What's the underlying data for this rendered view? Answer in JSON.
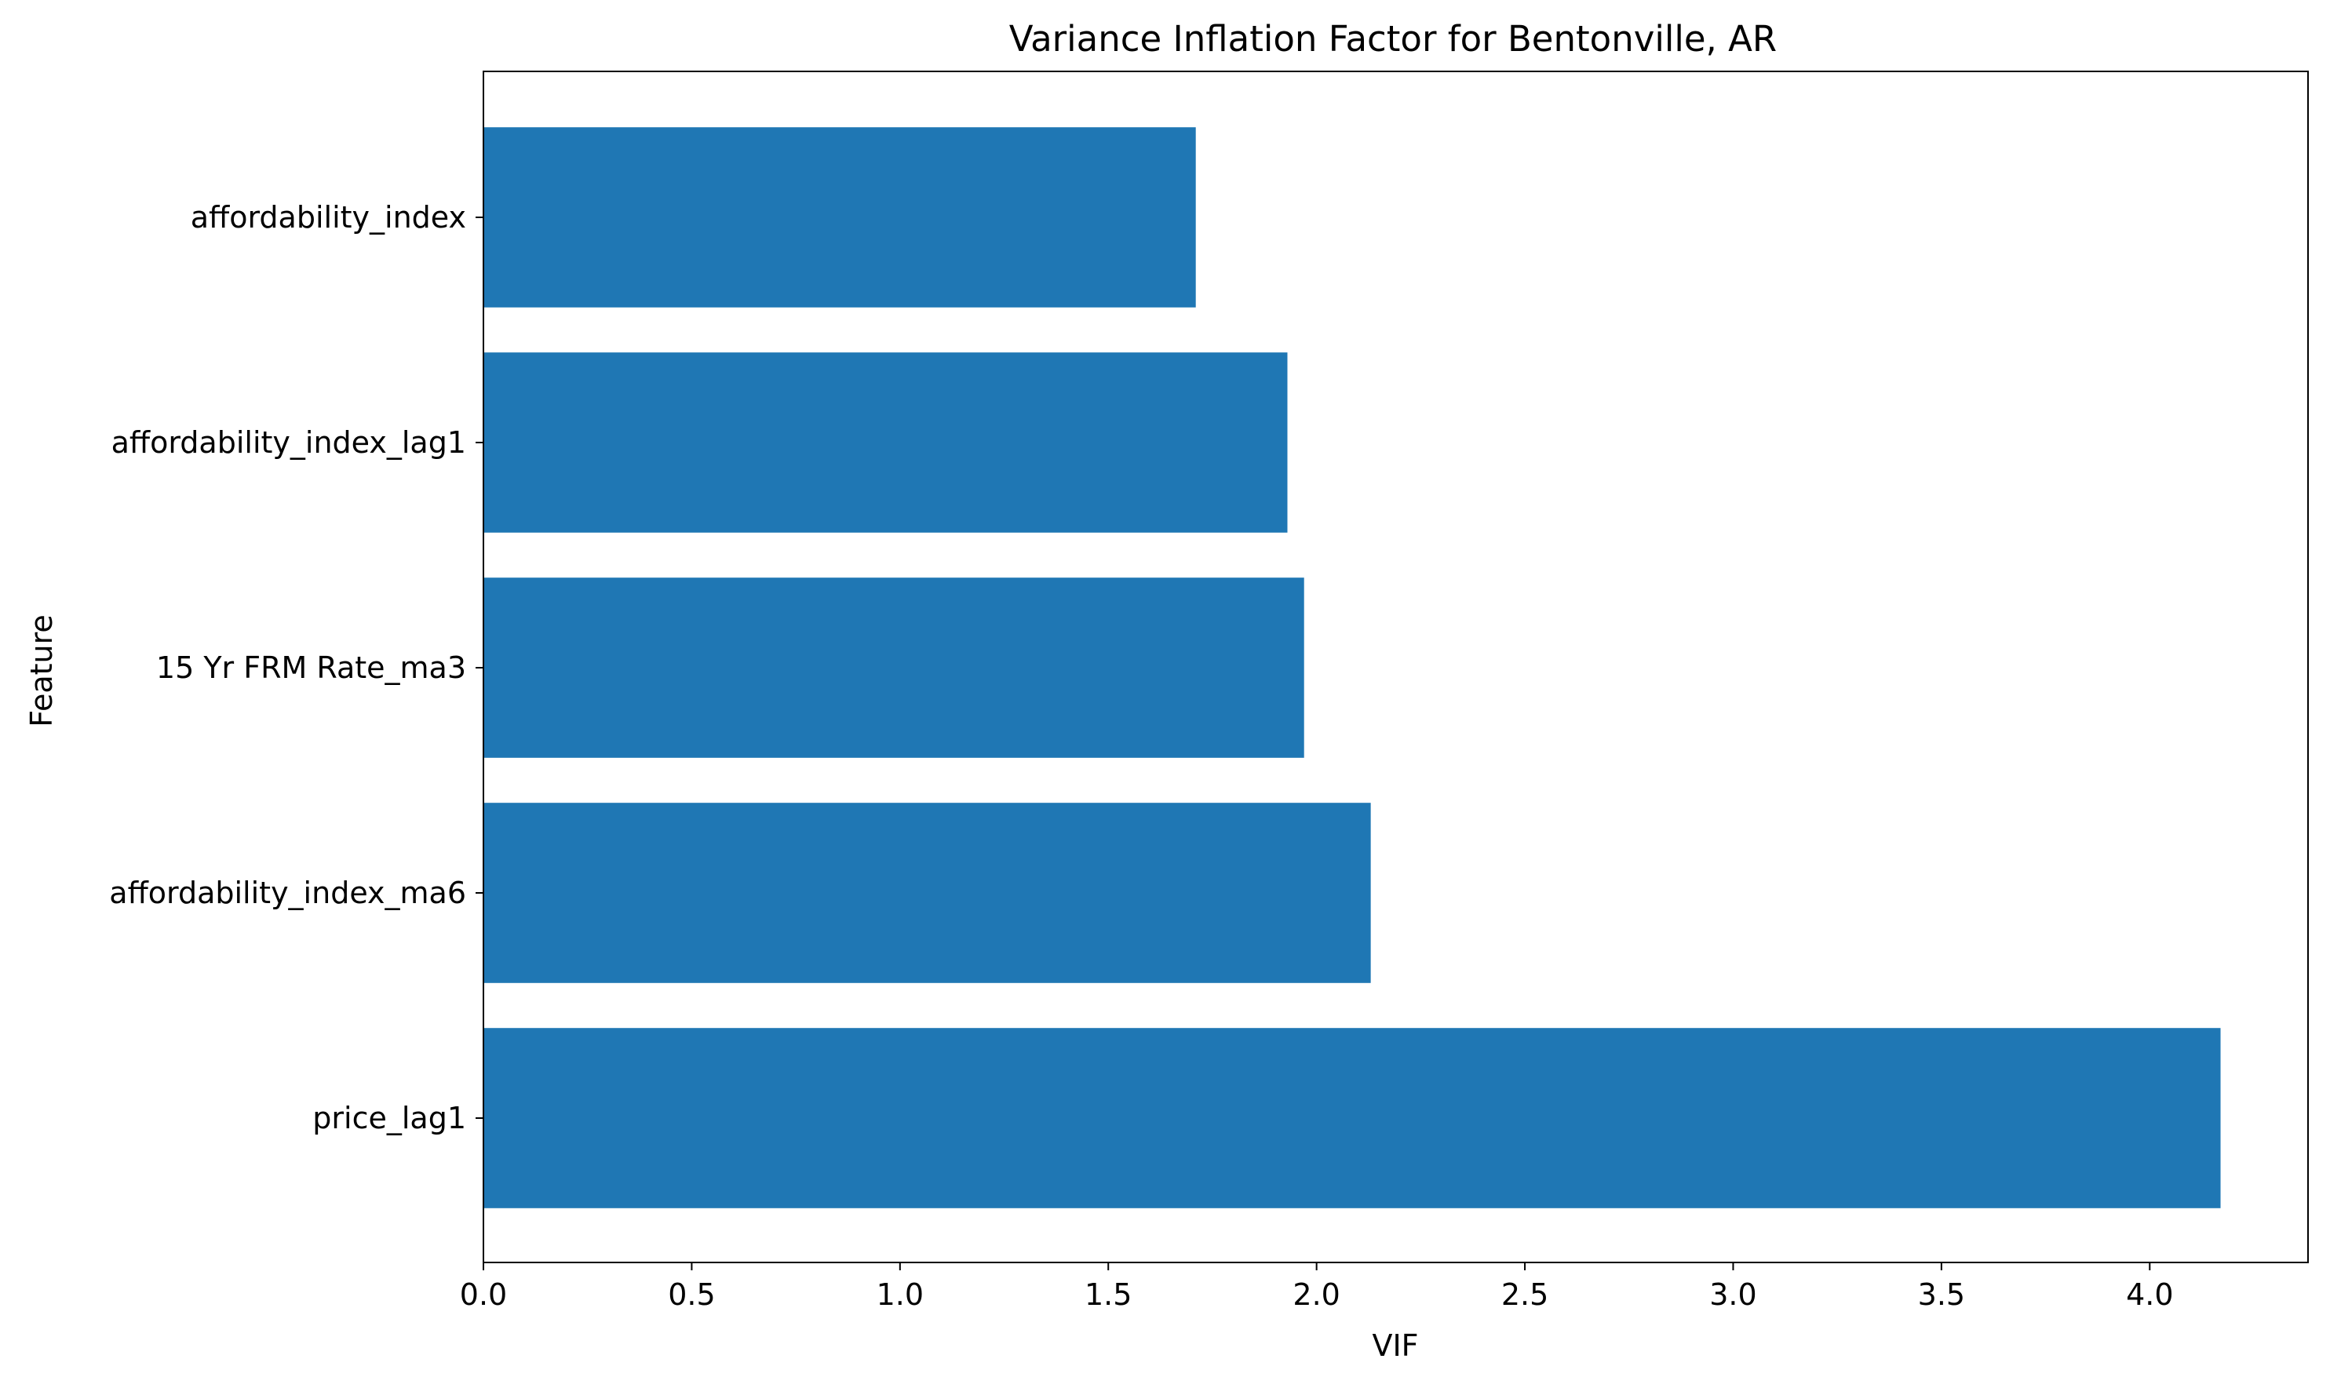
{
  "chart_data": {
    "type": "bar",
    "orientation": "horizontal",
    "title": "Variance Inflation Factor for Bentonville, AR",
    "xlabel": "VIF",
    "ylabel": "Feature",
    "categories": [
      "price_lag1",
      "affordability_index_ma6",
      "15 Yr FRM Rate_ma3",
      "affordability_index_lag1",
      "affordability_index"
    ],
    "values": [
      4.17,
      2.13,
      1.97,
      1.93,
      1.71
    ],
    "xlim": [
      0,
      4.38
    ],
    "xticks": [
      "0.0",
      "0.5",
      "1.0",
      "1.5",
      "2.0",
      "2.5",
      "3.0",
      "3.5",
      "4.0"
    ],
    "bar_color": "#1f77b4",
    "grid": false,
    "legend": false
  }
}
